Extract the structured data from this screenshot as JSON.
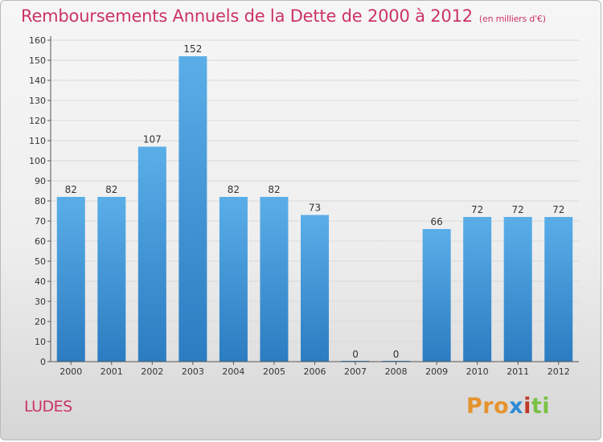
{
  "header": {
    "title": "Remboursements Annuels de la Dette de 2000 à 2012",
    "subtitle": "(en milliers d'€)"
  },
  "footer": {
    "commune": "LUDES",
    "logo_text": "Proxiti",
    "logo_parts": [
      "Pro",
      "x",
      "i",
      "ti"
    ]
  },
  "colors": {
    "bar_top": "#5aaee8",
    "bar_bottom": "#2b7cc1",
    "title": "#cc3366",
    "axis": "#555555",
    "grid": "#d9d9d9"
  },
  "chart_data": {
    "type": "bar",
    "categories": [
      "2000",
      "2001",
      "2002",
      "2003",
      "2004",
      "2005",
      "2006",
      "2007",
      "2008",
      "2009",
      "2010",
      "2011",
      "2012"
    ],
    "values": [
      82,
      82,
      107,
      152,
      82,
      82,
      73,
      0,
      0,
      66,
      72,
      72,
      72
    ],
    "data_labels": [
      "82",
      "82",
      "107",
      "152",
      "82",
      "82",
      "73",
      "0",
      "0",
      "66",
      "72",
      "72",
      "72"
    ],
    "y_ticks": [
      0,
      10,
      20,
      30,
      40,
      50,
      60,
      70,
      80,
      90,
      100,
      110,
      120,
      130,
      140,
      150,
      160
    ],
    "ylim": [
      0,
      160
    ],
    "grid": true,
    "legend": "none"
  }
}
